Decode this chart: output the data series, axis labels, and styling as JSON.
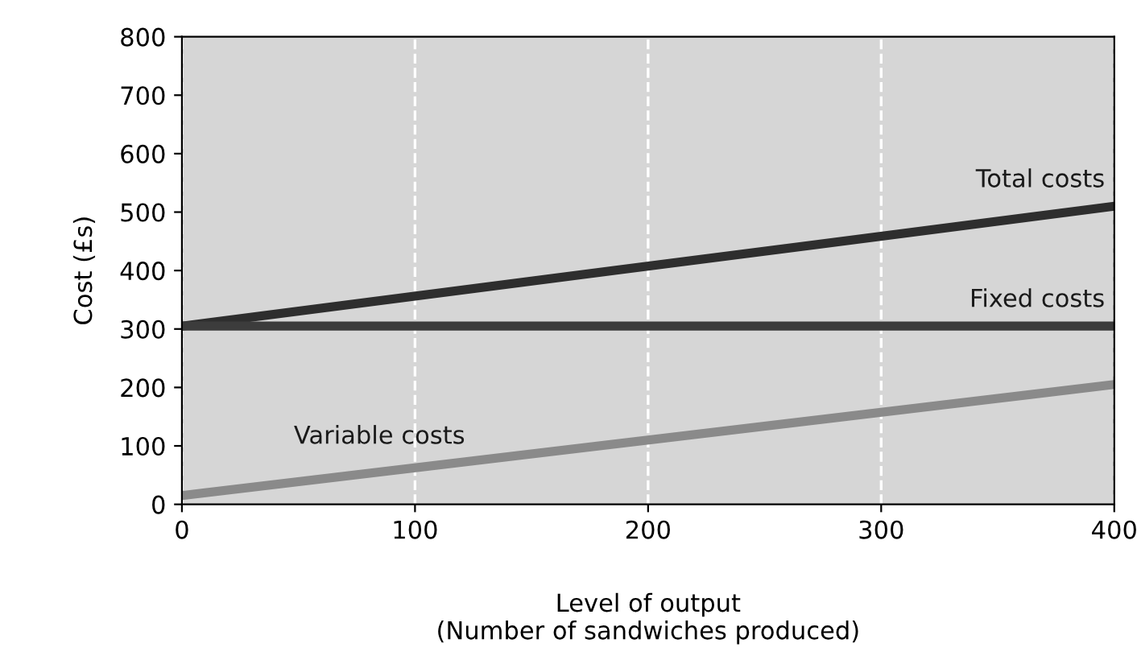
{
  "chart_data": {
    "type": "line",
    "xlabel": "Level of output\n(Number of sandwiches produced)",
    "ylabel": "Cost (£s)",
    "x": [
      0,
      400
    ],
    "series": [
      {
        "name": "Total costs",
        "color": "#2e2e2e",
        "values": [
          305,
          510
        ]
      },
      {
        "name": "Fixed costs",
        "color": "#3c3c3c",
        "values": [
          305,
          305
        ]
      },
      {
        "name": "Variable costs",
        "color": "#8a8a8a",
        "values": [
          15,
          205
        ]
      }
    ],
    "xlim": [
      0,
      400
    ],
    "ylim": [
      0,
      800
    ],
    "xticks": [
      0,
      100,
      200,
      300,
      400
    ],
    "yticks": [
      0,
      100,
      200,
      300,
      400,
      500,
      600,
      700,
      800
    ],
    "grid": "x",
    "line_style": "solid",
    "marker": "none"
  }
}
